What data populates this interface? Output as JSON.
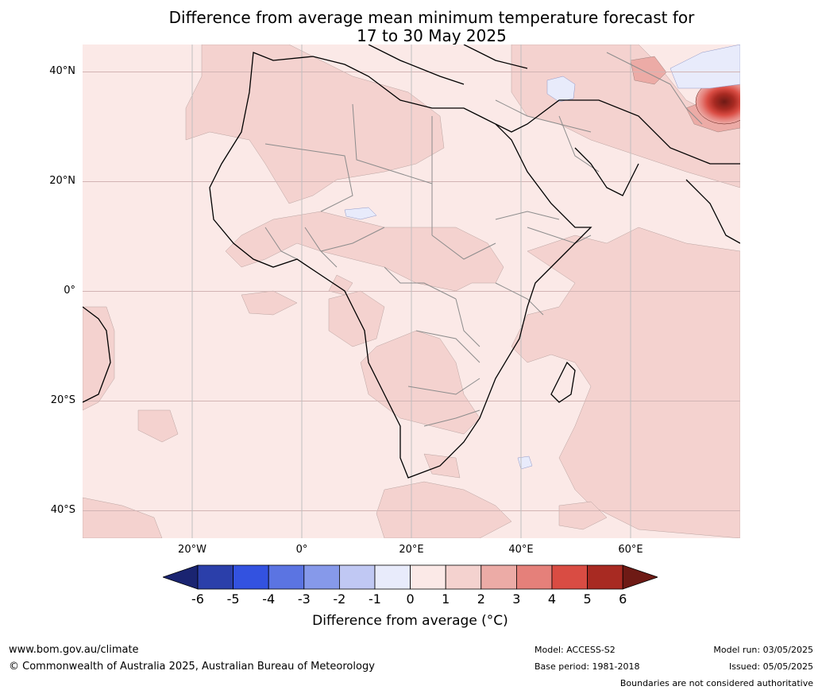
{
  "title": {
    "line1": "Difference from average mean minimum temperature forecast for",
    "line2": "17 to 30 May 2025"
  },
  "map": {
    "region": "Africa and Middle East",
    "projection": "equirectangular",
    "lon_range": [
      -38,
      82
    ],
    "lat_range": [
      -45,
      45
    ],
    "lat_labels": [
      "40°N",
      "20°N",
      "0°",
      "20°S",
      "40°S"
    ],
    "lon_labels": [
      "20°W",
      "0°",
      "20°E",
      "40°E",
      "60°E"
    ],
    "background_color": "#fbe9e7",
    "anomaly_features": [
      {
        "description": "strong warm anomaly",
        "location": "Tibetan Plateau / western China near 36N 80E",
        "value_range": "4 to 6+"
      },
      {
        "description": "moderate warm anomaly",
        "location": "Central Asia near 40N 65E",
        "value_range": "2 to 3"
      },
      {
        "description": "slight cool anomaly",
        "location": "Caspian Sea region",
        "value_range": "-1 to 0"
      },
      {
        "description": "slight cool anomaly",
        "location": "Sahel near 14N 10E",
        "value_range": "-1 to 0"
      },
      {
        "description": "slight cool anomaly",
        "location": "southwest Indian Ocean near 32S 40E",
        "value_range": "-1 to 0"
      }
    ]
  },
  "colorbar": {
    "title": "Difference from average (°C)",
    "ticks": [
      "-6",
      "-5",
      "-4",
      "-3",
      "-2",
      "-1",
      "0",
      "1",
      "2",
      "3",
      "4",
      "5",
      "6"
    ],
    "colors": [
      "#1a2471",
      "#2b3faa",
      "#3352e0",
      "#5b74e2",
      "#8699ea",
      "#c0c8f3",
      "#e8ebfb",
      "#fbe9e7",
      "#f4d2cf",
      "#ecaba6",
      "#e5807a",
      "#d94c43",
      "#a82a22",
      "#6e1a15"
    ]
  },
  "footer": {
    "website": "www.bom.gov.au/climate",
    "copyright": "© Commonwealth of Australia 2025, Australian Bureau of Meteorology",
    "model": "Model: ACCESS-S2",
    "base_period": "Base period: 1981-2018",
    "model_run": "Model run: 03/05/2025",
    "issued": "Issued: 05/05/2025",
    "disclaimer": "Boundaries are not considered authoritative"
  }
}
